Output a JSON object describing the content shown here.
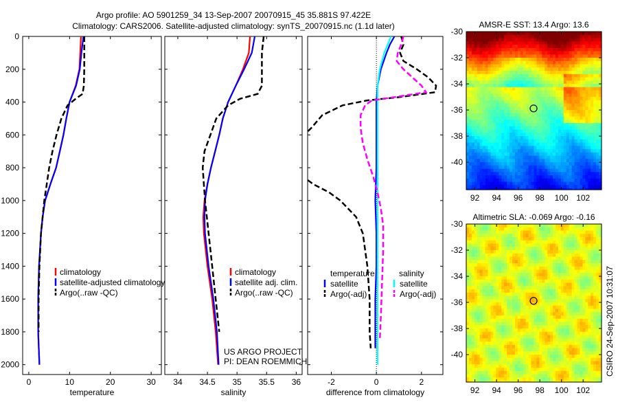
{
  "title_line1": "Argo profile: AO 5901259_34 13-Sep-2007 20070915_45 35.881S 97.422E",
  "title_line2": "Climatology: CARS2006. Satellite-adjusted climatology: synTS_20070915.nc (1.1d later)",
  "side_label": "CSIRO 24-Sep-2007 10:31:07",
  "project_line1": "US ARGO PROJECT",
  "project_line2": "PI: DEAN ROEMMICH",
  "colors": {
    "climatology": "#ff0000",
    "satellite": "#0000ff",
    "argo": "#000000",
    "sal_satellite": "#00ffff",
    "sal_argo": "#ff00ff"
  },
  "chart_data": [
    {
      "type": "line",
      "id": "temp",
      "xlabel": "temperature",
      "ylabel": "",
      "xlim": [
        -1.5,
        32.5
      ],
      "ylim": [
        0,
        2060
      ],
      "y_reversed": true,
      "xticks": [
        0,
        10,
        20,
        30
      ],
      "yticks": [
        0,
        200,
        400,
        600,
        800,
        1000,
        1200,
        1400,
        1600,
        1800,
        2000
      ],
      "legend": [
        "climatology",
        "satellite-adjusted climatology",
        "Argo(..raw -QC)"
      ],
      "series": [
        {
          "name": "climatology",
          "color": "#ff0000",
          "dash": false,
          "depth": [
            0,
            100,
            200,
            300,
            400,
            500,
            600,
            700,
            800,
            900,
            1000,
            1100,
            1200,
            1400,
            1600,
            1800,
            2000
          ],
          "values": [
            12.8,
            12.6,
            12.4,
            11.5,
            10.0,
            9.2,
            8.5,
            7.6,
            6.7,
            5.3,
            4.0,
            3.4,
            3.0,
            2.5,
            2.3,
            2.3,
            2.6
          ]
        },
        {
          "name": "satellite-adjusted climatology",
          "color": "#0000ff",
          "dash": false,
          "depth": [
            0,
            100,
            200,
            300,
            400,
            500,
            600,
            700,
            800,
            900,
            1000,
            1100,
            1200,
            1400,
            1600,
            1800,
            2000
          ],
          "values": [
            13.4,
            12.9,
            12.5,
            11.6,
            10.0,
            9.2,
            8.5,
            7.6,
            6.7,
            5.3,
            4.0,
            3.4,
            3.0,
            2.5,
            2.3,
            2.3,
            2.6
          ]
        },
        {
          "name": "Argo(..raw -QC)",
          "color": "#000000",
          "dash": true,
          "depth": [
            0,
            100,
            200,
            300,
            350,
            380,
            420,
            500,
            600,
            700,
            800,
            900,
            1000,
            1200,
            1400,
            1600,
            1800
          ],
          "values": [
            13.6,
            13.6,
            13.6,
            13.5,
            13.2,
            11.5,
            9.5,
            8.0,
            6.8,
            5.8,
            5.0,
            4.4,
            3.8,
            3.0,
            2.6,
            2.4,
            2.4
          ]
        }
      ]
    },
    {
      "type": "line",
      "id": "sal",
      "xlabel": "salinity",
      "xlim": [
        33.78,
        36.1
      ],
      "ylim": [
        0,
        2060
      ],
      "y_reversed": true,
      "xticks": [
        34,
        34.5,
        35,
        35.5,
        36
      ],
      "legend": [
        "climatology",
        "satellite adj. clim.",
        "Argo(..raw -QC)"
      ],
      "series": [
        {
          "name": "climatology",
          "color": "#ff0000",
          "dash": false,
          "depth": [
            0,
            100,
            200,
            300,
            400,
            500,
            600,
            700,
            800,
            900,
            1000,
            1100,
            1200,
            1400,
            1600,
            1800,
            2000
          ],
          "values": [
            35.22,
            35.2,
            35.1,
            34.98,
            34.85,
            34.76,
            34.7,
            34.63,
            34.56,
            34.5,
            34.45,
            34.43,
            34.44,
            34.5,
            34.58,
            34.64,
            34.68
          ]
        },
        {
          "name": "satellite adj. clim.",
          "color": "#0000ff",
          "dash": false,
          "depth": [
            0,
            100,
            200,
            300,
            400,
            500,
            600,
            700,
            800,
            900,
            1000,
            1100,
            1200,
            1400,
            1600,
            1800,
            2000
          ],
          "values": [
            35.3,
            35.25,
            35.12,
            34.98,
            34.85,
            34.76,
            34.7,
            34.63,
            34.56,
            34.5,
            34.46,
            34.45,
            34.46,
            34.52,
            34.6,
            34.66,
            34.69
          ]
        },
        {
          "name": "Argo(..raw -QC)",
          "color": "#000000",
          "dash": true,
          "depth": [
            0,
            100,
            200,
            300,
            350,
            380,
            420,
            500,
            600,
            700,
            800,
            900,
            1000,
            1200,
            1400,
            1600,
            1800
          ],
          "values": [
            35.45,
            35.42,
            35.42,
            35.42,
            35.35,
            35.05,
            34.85,
            34.65,
            34.55,
            34.45,
            34.42,
            34.44,
            34.46,
            34.52,
            34.58,
            34.64,
            34.7
          ]
        }
      ]
    },
    {
      "type": "line",
      "id": "diff",
      "xlabel": "difference from climatology",
      "xlim": [
        -3.05,
        2.95
      ],
      "ylim": [
        0,
        2060
      ],
      "y_reversed": true,
      "xticks": [
        -2,
        0,
        2
      ],
      "legend_temperature_title": "temperature",
      "legend_salinity_title": "salinity",
      "legend": [
        "satellite",
        "Argo(-adj)",
        "satellite",
        "Argo(-adj)"
      ],
      "series": [
        {
          "name": "temperature satellite",
          "color": "#0000ff",
          "dash": false,
          "depth": [
            0,
            50,
            100,
            200,
            300,
            400,
            600,
            800,
            1000,
            1200,
            1400,
            1600,
            1800,
            1900
          ],
          "values": [
            0.8,
            0.6,
            0.45,
            0.2,
            0.05,
            0.0,
            0.0,
            0.0,
            -0.05,
            0.0,
            0.0,
            -0.05,
            -0.05,
            -0.05
          ]
        },
        {
          "name": "temperature Argo(-adj)",
          "color": "#000000",
          "dash": true,
          "depth": [
            0,
            50,
            100,
            150,
            200,
            250,
            300,
            340,
            370,
            390,
            420,
            480,
            560,
            600,
            860,
            900,
            950,
            1000,
            1100,
            1200,
            1400,
            1600,
            1800,
            1900
          ],
          "values": [
            1.1,
            1.2,
            1.05,
            1.2,
            1.8,
            2.3,
            2.65,
            2.6,
            1.0,
            -0.4,
            -1.5,
            -2.4,
            -2.9,
            -3.2,
            -3.2,
            -2.8,
            -2.1,
            -1.6,
            -0.9,
            -0.6,
            -0.4,
            -0.3,
            -0.3,
            -0.25
          ]
        },
        {
          "name": "salinity satellite",
          "color": "#00ffff",
          "dash": false,
          "depth": [
            0,
            50,
            100,
            200,
            300,
            400,
            600,
            800,
            1000,
            1200,
            1400,
            1600,
            1800,
            2000
          ],
          "values": [
            0.65,
            0.5,
            0.35,
            0.15,
            0.05,
            0.05,
            0.05,
            0.05,
            0.05,
            0.05,
            0.05,
            0.05,
            0.05,
            0.05
          ]
        },
        {
          "name": "salinity Argo(-adj)",
          "color": "#ff00ff",
          "dash": true,
          "depth": [
            0,
            50,
            100,
            150,
            200,
            250,
            300,
            340,
            370,
            390,
            420,
            480,
            560,
            650,
            750,
            850,
            950,
            1050,
            1150,
            1300,
            1500,
            1700,
            1850
          ],
          "values": [
            1.2,
            1.1,
            0.95,
            0.9,
            1.2,
            1.6,
            2.0,
            2.2,
            0.8,
            -0.2,
            -0.5,
            -0.7,
            -0.7,
            -0.6,
            -0.4,
            -0.15,
            0.05,
            0.2,
            0.3,
            0.3,
            0.25,
            0.2,
            0.15
          ]
        }
      ]
    },
    {
      "type": "heatmap",
      "id": "sst",
      "title": "AMSR-E SST: 13.4 Argo: 13.6",
      "xlim": [
        91.2,
        103.7
      ],
      "ylim": [
        -42.1,
        -30
      ],
      "xticks": [
        92,
        94,
        96,
        98,
        100,
        102
      ],
      "yticks": [
        -30,
        -32,
        -34,
        -36,
        -38,
        -40
      ],
      "marker": {
        "lon": 97.422,
        "lat": -35.881
      }
    },
    {
      "type": "heatmap",
      "id": "sla",
      "title": "Altimetric SLA: -0.069 Argo: -0.16",
      "xlim": [
        91.2,
        103.7
      ],
      "ylim": [
        -42.1,
        -30
      ],
      "xticks": [
        92,
        94,
        96,
        98,
        100,
        102
      ],
      "yticks": [
        -30,
        -32,
        -34,
        -36,
        -38,
        -40
      ],
      "marker": {
        "lon": 97.422,
        "lat": -35.881
      }
    }
  ]
}
